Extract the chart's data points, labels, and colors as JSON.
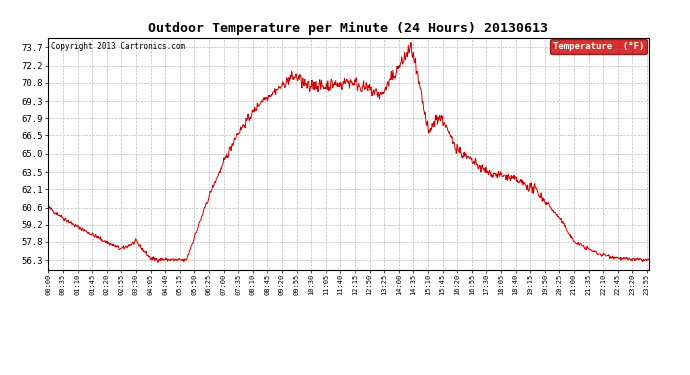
{
  "title": "Outdoor Temperature per Minute (24 Hours) 20130613",
  "copyright": "Copyright 2013 Cartronics.com",
  "legend_label": "Temperature  (°F)",
  "line_color": "#cc0000",
  "bg_color": "#ffffff",
  "grid_color": "#bbbbbb",
  "legend_bg": "#cc0000",
  "legend_fg": "#ffffff",
  "yticks": [
    56.3,
    57.8,
    59.2,
    60.6,
    62.1,
    63.5,
    65.0,
    66.5,
    67.9,
    69.3,
    70.8,
    72.2,
    73.7
  ],
  "ylim": [
    55.5,
    74.5
  ],
  "xtick_labels": [
    "00:00",
    "00:35",
    "01:10",
    "01:45",
    "02:20",
    "02:55",
    "03:30",
    "04:05",
    "04:40",
    "05:15",
    "05:50",
    "06:25",
    "07:00",
    "07:35",
    "08:10",
    "08:45",
    "09:20",
    "09:55",
    "10:30",
    "11:05",
    "11:40",
    "12:15",
    "12:50",
    "13:25",
    "14:00",
    "14:35",
    "15:10",
    "15:45",
    "16:20",
    "16:55",
    "17:30",
    "18:05",
    "18:40",
    "19:15",
    "19:50",
    "20:25",
    "21:00",
    "21:35",
    "22:10",
    "22:45",
    "23:20",
    "23:55"
  ],
  "figsize": [
    6.9,
    3.75
  ],
  "dpi": 100
}
